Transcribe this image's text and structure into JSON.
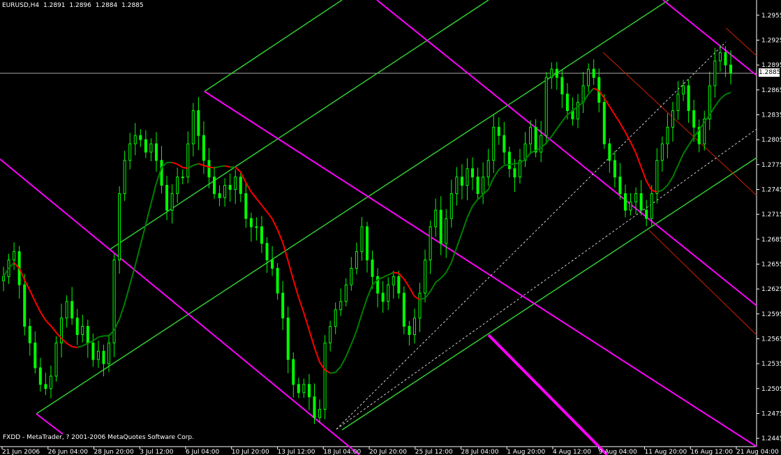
{
  "header": {
    "symbol": "EURUSD,H4",
    "open": "1.2891",
    "high": "1.2896",
    "low": "1.2884",
    "close": "1.2885"
  },
  "footer": {
    "copyright": "FXDD - MetaTrader, ? 2001-2006 MetaQuotes Software Corp."
  },
  "price_axis": {
    "current_price": "1.2885",
    "ticks": [
      "1.2955",
      "1.2925",
      "1.2895",
      "1.2865",
      "1.2835",
      "1.2805",
      "1.2775",
      "1.2745",
      "1.2715",
      "1.2685",
      "1.2655",
      "1.2625",
      "1.2595",
      "1.2565",
      "1.2535",
      "1.2505",
      "1.2475",
      "1.2445"
    ]
  },
  "time_axis": {
    "ticks": [
      "21 Jun 2006",
      "26 Jun 04:00",
      "28 Jun 20:00",
      "3 Jul 12:00",
      "6 Jul 04:00",
      "10 Jul 20:00",
      "13 Jul 12:00",
      "18 Jul 04:00",
      "20 Jul 20:00",
      "25 Jul 12:00",
      "28 Jul 04:00",
      "1 Aug 20:00",
      "4 Aug 12:00",
      "9 Aug 04:00",
      "11 Aug 20:00",
      "16 Aug 12:00",
      "21 Aug 04:00"
    ]
  },
  "colors": {
    "background": "#000000",
    "candles": "#00ff00",
    "ma_up": "#008000",
    "ma_down": "#ff0000",
    "andrews_green": "#33cc33",
    "andrews_magenta": "#ff00ff",
    "andrews_red": "#cc2200",
    "axis": "#ffffff"
  },
  "chart_data": {
    "type": "candlestick",
    "symbol": "EURUSD",
    "timeframe": "H4",
    "ylim": [
      1.2435,
      1.297
    ],
    "close_points": [
      [
        0,
        1.264
      ],
      [
        1,
        1.266
      ],
      [
        2,
        1.267
      ],
      [
        3,
        1.263
      ],
      [
        4,
        1.258
      ],
      [
        5,
        1.256
      ],
      [
        6,
        1.253
      ],
      [
        7,
        1.251
      ],
      [
        8,
        1.2505
      ],
      [
        9,
        1.252
      ],
      [
        10,
        1.256
      ],
      [
        11,
        1.259
      ],
      [
        12,
        1.261
      ],
      [
        13,
        1.259
      ],
      [
        14,
        1.257
      ],
      [
        15,
        1.258
      ],
      [
        16,
        1.256
      ],
      [
        17,
        1.254
      ],
      [
        18,
        1.255
      ],
      [
        19,
        1.2535
      ],
      [
        20,
        1.256
      ],
      [
        21,
        1.266
      ],
      [
        22,
        1.274
      ],
      [
        23,
        1.278
      ],
      [
        24,
        1.28
      ],
      [
        25,
        1.281
      ],
      [
        26,
        1.2805
      ],
      [
        27,
        1.279
      ],
      [
        28,
        1.28
      ],
      [
        29,
        1.278
      ],
      [
        30,
        1.275
      ],
      [
        31,
        1.272
      ],
      [
        32,
        1.274
      ],
      [
        33,
        1.276
      ],
      [
        34,
        1.276
      ],
      [
        35,
        1.28
      ],
      [
        36,
        1.284
      ],
      [
        37,
        1.281
      ],
      [
        38,
        1.278
      ],
      [
        39,
        1.276
      ],
      [
        40,
        1.274
      ],
      [
        41,
        1.2735
      ],
      [
        42,
        1.275
      ],
      [
        43,
        1.2745
      ],
      [
        44,
        1.276
      ],
      [
        45,
        1.274
      ],
      [
        46,
        1.271
      ],
      [
        47,
        1.27
      ],
      [
        48,
        1.27
      ],
      [
        49,
        1.268
      ],
      [
        50,
        1.266
      ],
      [
        51,
        1.265
      ],
      [
        52,
        1.262
      ],
      [
        53,
        1.259
      ],
      [
        54,
        1.254
      ],
      [
        55,
        1.251
      ],
      [
        56,
        1.25
      ],
      [
        57,
        1.251
      ],
      [
        58,
        1.2495
      ],
      [
        59,
        1.247
      ],
      [
        60,
        1.248
      ],
      [
        61,
        1.256
      ],
      [
        62,
        1.258
      ],
      [
        63,
        1.26
      ],
      [
        64,
        1.261
      ],
      [
        65,
        1.263
      ],
      [
        66,
        1.265
      ],
      [
        67,
        1.267
      ],
      [
        68,
        1.27
      ],
      [
        69,
        1.266
      ],
      [
        70,
        1.264
      ],
      [
        71,
        1.262
      ],
      [
        72,
        1.261
      ],
      [
        73,
        1.263
      ],
      [
        74,
        1.264
      ],
      [
        75,
        1.262
      ],
      [
        76,
        1.258
      ],
      [
        77,
        1.257
      ],
      [
        78,
        1.259
      ],
      [
        79,
        1.262
      ],
      [
        80,
        1.266
      ],
      [
        81,
        1.27
      ],
      [
        82,
        1.272
      ],
      [
        83,
        1.268
      ],
      [
        84,
        1.271
      ],
      [
        85,
        1.274
      ],
      [
        86,
        1.276
      ],
      [
        87,
        1.275
      ],
      [
        88,
        1.277
      ],
      [
        89,
        1.276
      ],
      [
        90,
        1.274
      ],
      [
        91,
        1.276
      ],
      [
        92,
        1.278
      ],
      [
        93,
        1.282
      ],
      [
        94,
        1.281
      ],
      [
        95,
        1.279
      ],
      [
        96,
        1.277
      ],
      [
        97,
        1.276
      ],
      [
        98,
        1.278
      ],
      [
        99,
        1.28
      ],
      [
        100,
        1.282
      ],
      [
        101,
        1.279
      ],
      [
        102,
        1.281
      ],
      [
        103,
        1.288
      ],
      [
        104,
        1.289
      ],
      [
        105,
        1.288
      ],
      [
        106,
        1.286
      ],
      [
        107,
        1.284
      ],
      [
        108,
        1.283
      ],
      [
        109,
        1.285
      ],
      [
        110,
        1.287
      ],
      [
        111,
        1.289
      ],
      [
        112,
        1.288
      ],
      [
        113,
        1.285
      ],
      [
        114,
        1.28
      ],
      [
        115,
        1.278
      ],
      [
        116,
        1.276
      ],
      [
        117,
        1.274
      ],
      [
        118,
        1.272
      ],
      [
        119,
        1.273
      ],
      [
        120,
        1.274
      ],
      [
        121,
        1.272
      ],
      [
        122,
        1.271
      ],
      [
        123,
        1.274
      ],
      [
        124,
        1.278
      ],
      [
        125,
        1.28
      ],
      [
        126,
        1.282
      ],
      [
        127,
        1.284
      ],
      [
        128,
        1.286
      ],
      [
        129,
        1.287
      ],
      [
        130,
        1.284
      ],
      [
        131,
        1.282
      ],
      [
        132,
        1.28
      ],
      [
        133,
        1.283
      ],
      [
        134,
        1.287
      ],
      [
        135,
        1.29
      ],
      [
        136,
        1.291
      ],
      [
        137,
        1.2895
      ],
      [
        138,
        1.2885
      ]
    ]
  }
}
